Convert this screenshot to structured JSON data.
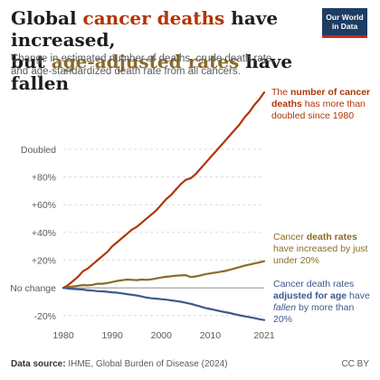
{
  "header": {
    "title_part1": "Global ",
    "title_red": "cancer deaths",
    "title_part2": " have increased,",
    "title_part3": "but ",
    "title_brown": "age-adjusted rates",
    "title_part4": " have fallen",
    "subtitle": "Change in estimated number of deaths, crude death rate, and age-standardized death rate from all cancers.",
    "logo_text": "Our World in Data"
  },
  "labels": {
    "deaths_pre": "The ",
    "deaths_bold": "number of cancer deaths",
    "deaths_post": " has more than doubled since 1980",
    "rates_pre": "Cancer ",
    "rates_bold": "death rates",
    "rates_post": " have increased by just under 20%",
    "adj_pre": "Cancer death rates ",
    "adj_bold": "adjusted for age",
    "adj_mid": " have ",
    "adj_italic": "fallen",
    "adj_post": " by more than 20%"
  },
  "footer": {
    "source_label": "Data source:",
    "source_text": " IHME, Global Burden of Disease (2024)",
    "license": "CC BY"
  },
  "colors": {
    "deaths": "#b13507",
    "rates": "#8c6b28",
    "adjusted": "#3b5a8c",
    "grid": "#dcdcdc",
    "baseline": "#9a9a9a"
  },
  "chart_data": {
    "type": "line",
    "x": [
      1980,
      1981,
      1982,
      1983,
      1984,
      1985,
      1986,
      1987,
      1988,
      1989,
      1990,
      1991,
      1992,
      1993,
      1994,
      1995,
      1996,
      1997,
      1998,
      1999,
      2000,
      2001,
      2002,
      2003,
      2004,
      2005,
      2006,
      2007,
      2008,
      2009,
      2010,
      2011,
      2012,
      2013,
      2014,
      2015,
      2016,
      2017,
      2018,
      2019,
      2020,
      2021
    ],
    "series": [
      {
        "key": "deaths",
        "values": [
          0,
          2,
          5,
          8,
          12,
          14,
          17,
          20,
          23,
          26,
          30,
          33,
          36,
          39,
          42,
          44,
          47,
          50,
          53,
          56,
          60,
          64,
          67,
          71,
          75,
          78,
          79,
          82,
          86,
          90,
          94,
          98,
          102,
          106,
          110,
          114,
          118,
          123,
          127,
          132,
          136,
          141
        ]
      },
      {
        "key": "rates",
        "values": [
          0,
          0.5,
          1,
          1.5,
          2,
          1.8,
          2.2,
          3,
          3,
          3.5,
          4.2,
          5,
          5.5,
          6,
          5.8,
          5.6,
          6,
          5.8,
          6.2,
          6.8,
          7.5,
          8,
          8.3,
          8.8,
          9,
          9.2,
          7.8,
          8.2,
          9,
          9.8,
          10.4,
          11,
          11.6,
          12.2,
          13,
          14,
          15,
          16,
          16.8,
          17.6,
          18.3,
          19.2
        ]
      },
      {
        "key": "adjusted",
        "values": [
          0,
          -0.5,
          -0.8,
          -1,
          -1.2,
          -1.8,
          -2,
          -2.4,
          -2.5,
          -2.8,
          -3.2,
          -3.5,
          -4,
          -4.5,
          -5,
          -5.5,
          -6.2,
          -7,
          -7.5,
          -7.8,
          -8.2,
          -8.5,
          -9,
          -9.5,
          -10,
          -10.8,
          -11.5,
          -12.5,
          -13.5,
          -14.5,
          -15.2,
          -16,
          -16.8,
          -17.5,
          -18.2,
          -19,
          -19.8,
          -20.5,
          -21.2,
          -21.8,
          -22.6,
          -23.2
        ]
      }
    ],
    "xticks": [
      1980,
      1990,
      2000,
      2010,
      2021
    ],
    "yticks": [
      {
        "value": -20,
        "label": "-20%"
      },
      {
        "value": 0,
        "label": "No change"
      },
      {
        "value": 20,
        "label": "+20%"
      },
      {
        "value": 40,
        "label": "+40%"
      },
      {
        "value": 60,
        "label": "+60%"
      },
      {
        "value": 80,
        "label": "+80%"
      },
      {
        "value": 100,
        "label": "Doubled"
      }
    ],
    "xlim": [
      1980,
      2021
    ],
    "ylim": [
      -26,
      145
    ],
    "grid": true
  }
}
